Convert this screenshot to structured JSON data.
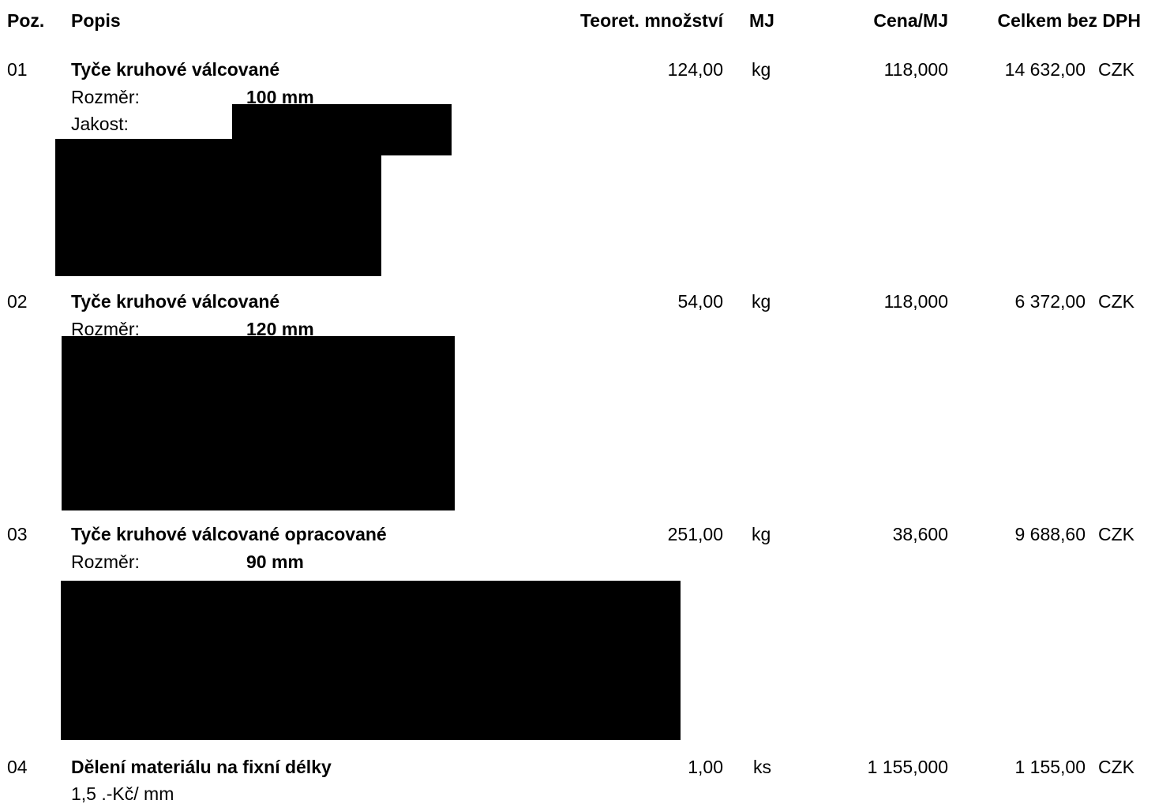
{
  "header": {
    "poz": "Poz.",
    "popis": "Popis",
    "mnozstvi": "Teoret. množství",
    "mj": "MJ",
    "cena": "Cena/MJ",
    "celkem": "Celkem bez DPH"
  },
  "items": [
    {
      "poz": "01",
      "title": "Tyče kruhové válcované",
      "qty": "124,00",
      "unit": "kg",
      "price": "118,000",
      "total": "14 632,00",
      "currency": "CZK",
      "rozmer_label": "Rozměr:",
      "rozmer_value": "100 mm",
      "jakost_label": "Jakost:"
    },
    {
      "poz": "02",
      "title": "Tyče kruhové válcované",
      "qty": "54,00",
      "unit": "kg",
      "price": "118,000",
      "total": "6 372,00",
      "currency": "CZK",
      "rozmer_label": "Rozměr:",
      "rozmer_value": "120 mm"
    },
    {
      "poz": "03",
      "title": "Tyče kruhové válcované opracované",
      "qty": "251,00",
      "unit": "kg",
      "price": "38,600",
      "total": "9 688,60",
      "currency": "CZK",
      "rozmer_label": "Rozměr:",
      "rozmer_value": "90 mm"
    },
    {
      "poz": "04",
      "title": "Dělení materiálu na fixní délky",
      "qty": "1,00",
      "unit": "ks",
      "price": "1 155,000",
      "total": "1 155,00",
      "currency": "CZK",
      "note": "1,5 .-Kč/ mm"
    }
  ],
  "colors": {
    "text": "#000000",
    "background": "#ffffff",
    "redaction": "#000000"
  }
}
